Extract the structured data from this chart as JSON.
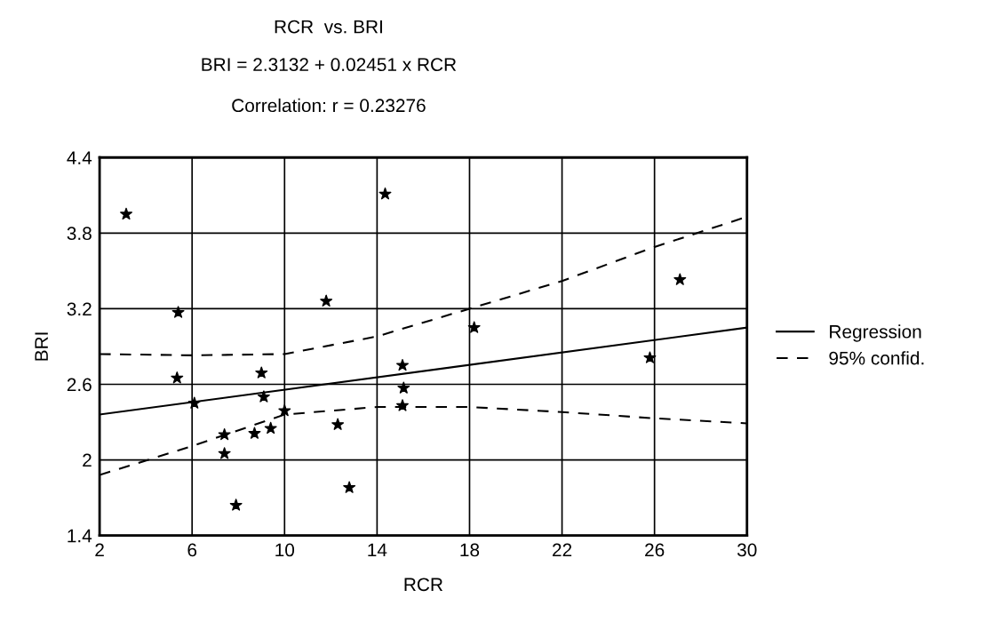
{
  "chart_data": {
    "type": "scatter",
    "title": "RCR  vs. BRI",
    "subtitle": "BRI = 2.3132 + 0.02451 x RCR",
    "annotations": [
      "Correlation: r = 0.23276"
    ],
    "xlabel": "RCR",
    "ylabel": "BRI",
    "xlim": [
      2,
      30
    ],
    "xticks": [
      2,
      6,
      10,
      14,
      18,
      22,
      26,
      30
    ],
    "ylim": [
      1.4,
      4.4
    ],
    "yticks": [
      1.4,
      2,
      2.6,
      3.2,
      3.8,
      4.4
    ],
    "grid": true,
    "legend": "right",
    "series": [
      {
        "color": "#000000",
        "marker": "star",
        "x": [
          3.15,
          5.4,
          5.35,
          6.1,
          7.4,
          7.4,
          7.9,
          8.7,
          9.0,
          9.1,
          9.4,
          10.0,
          11.8,
          12.3,
          12.8,
          14.35,
          15.1,
          15.15,
          15.1,
          18.2,
          25.8,
          27.1
        ],
        "values": [
          3.95,
          3.17,
          2.65,
          2.45,
          2.2,
          2.05,
          1.64,
          2.21,
          2.69,
          2.5,
          2.25,
          2.39,
          3.26,
          2.28,
          1.78,
          4.11,
          2.75,
          2.57,
          2.43,
          3.05,
          2.81,
          3.43
        ]
      },
      {
        "type": "line",
        "name": "Regression",
        "color": "#000000",
        "line_style": "solid",
        "x": [
          2,
          30
        ],
        "values": [
          2.36,
          3.05
        ]
      },
      {
        "type": "line",
        "name": "95% confid.",
        "color": "#000000",
        "line_style": "dashed",
        "x": [
          2,
          6,
          10,
          14,
          18,
          22,
          26,
          30
        ],
        "values": [
          2.84,
          2.83,
          2.84,
          2.98,
          3.2,
          3.42,
          3.69,
          3.93
        ]
      },
      {
        "type": "line",
        "color": "#000000",
        "line_style": "dashed",
        "x": [
          2,
          6,
          10,
          14,
          18,
          22,
          26,
          30
        ],
        "values": [
          1.88,
          2.11,
          2.36,
          2.42,
          2.42,
          2.38,
          2.33,
          2.29
        ]
      }
    ]
  }
}
